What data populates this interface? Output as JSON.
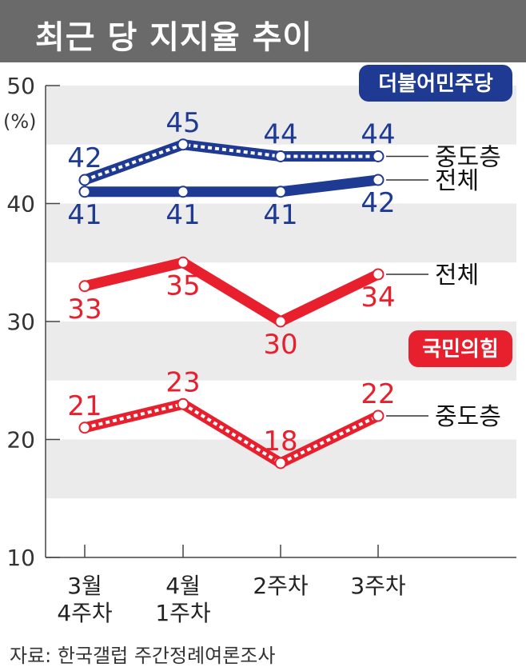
{
  "header": {
    "title": "최근 당 지지율 추이"
  },
  "source": "자료: 한국갤럽 주간정례여론조사",
  "chart_data": {
    "type": "line",
    "title": "최근 당 지지율 추이",
    "ylabel": "(%)",
    "ylim": [
      10,
      50
    ],
    "yticks": [
      "10",
      "20",
      "30",
      "40",
      "50"
    ],
    "categories": [
      [
        "3월",
        "4주차"
      ],
      [
        "4월",
        "1주차"
      ],
      [
        "2주차"
      ],
      [
        "3주차"
      ]
    ],
    "parties": [
      {
        "name": "더불어민주당",
        "color": "#1f3a93"
      },
      {
        "name": "국민의힘",
        "color": "#e8202e"
      }
    ],
    "series": [
      {
        "name": "중도층",
        "party": 0,
        "style": "dotted",
        "values": [
          42,
          45,
          44,
          44
        ],
        "labelPos": "above"
      },
      {
        "name": "전체",
        "party": 0,
        "style": "solid",
        "values": [
          41,
          41,
          41,
          42
        ],
        "labelPos": "below"
      },
      {
        "name": "전체",
        "party": 1,
        "style": "solid",
        "values": [
          33,
          35,
          30,
          34
        ],
        "labelPos": "below"
      },
      {
        "name": "중도층",
        "party": 1,
        "style": "dotted",
        "values": [
          21,
          23,
          18,
          22
        ],
        "labelPos": "above"
      }
    ],
    "grid": "alternating-bands"
  }
}
